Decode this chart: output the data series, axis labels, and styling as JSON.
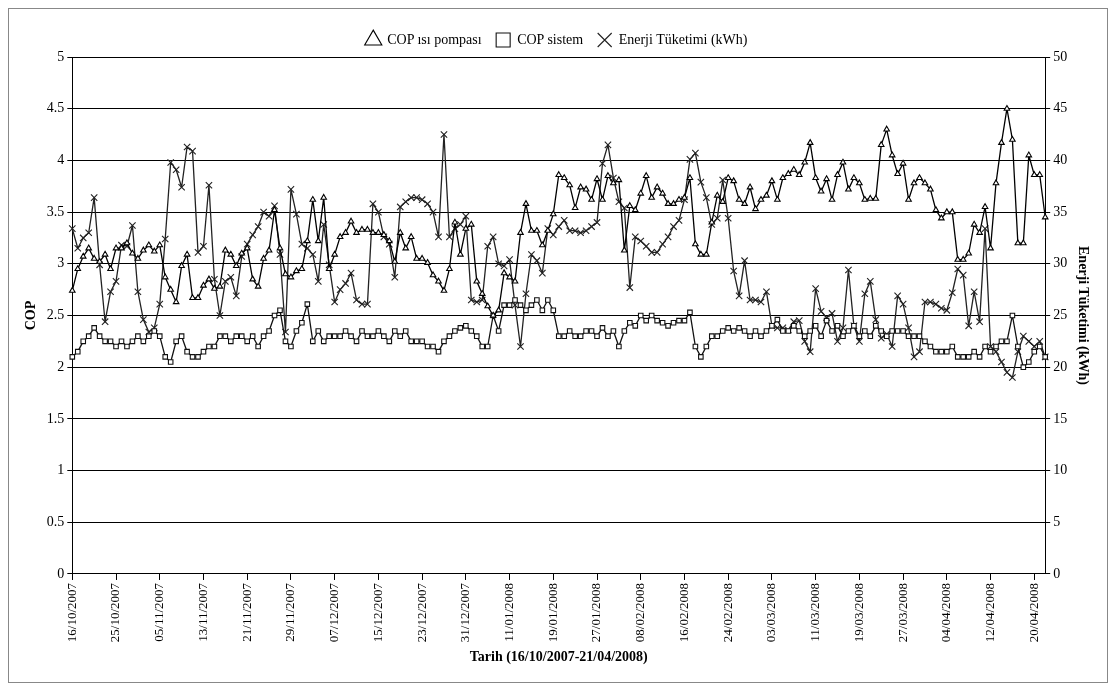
{
  "chart_data": {
    "type": "line",
    "xlabel": "Tarih (16/10/2007-21/04/2008)",
    "ylabel": "COP",
    "y2label": "Enerji Tüketimi (kWh)",
    "categories": [
      "16/10/2007",
      null,
      null,
      null,
      null,
      null,
      null,
      null,
      "25/10/2007",
      null,
      null,
      null,
      null,
      null,
      null,
      null,
      "05/11/2007",
      null,
      null,
      null,
      null,
      null,
      null,
      null,
      "13/11/2007",
      null,
      null,
      null,
      null,
      null,
      null,
      null,
      "21/11/2007",
      null,
      null,
      null,
      null,
      null,
      null,
      null,
      "29/11/2007",
      null,
      null,
      null,
      null,
      null,
      null,
      null,
      "07/12/2007",
      null,
      null,
      null,
      null,
      null,
      null,
      null,
      "15/12/2007",
      null,
      null,
      null,
      null,
      null,
      null,
      null,
      "23/12/2007",
      null,
      null,
      null,
      null,
      null,
      null,
      null,
      "31/12/2007",
      null,
      null,
      null,
      null,
      null,
      null,
      null,
      "11/01/2008",
      null,
      null,
      null,
      null,
      null,
      null,
      null,
      "19/01/2008",
      null,
      null,
      null,
      null,
      null,
      null,
      null,
      "27/01/2008",
      null,
      null,
      null,
      null,
      null,
      null,
      null,
      "08/02/2008",
      null,
      null,
      null,
      null,
      null,
      null,
      null,
      "16/02/2008",
      null,
      null,
      null,
      null,
      null,
      null,
      null,
      "24/02/2008",
      null,
      null,
      null,
      null,
      null,
      null,
      null,
      "03/03/2008",
      null,
      null,
      null,
      null,
      null,
      null,
      null,
      "11/03/2008",
      null,
      null,
      null,
      null,
      null,
      null,
      null,
      "19/03/2008",
      null,
      null,
      null,
      null,
      null,
      null,
      null,
      "27/03/2008",
      null,
      null,
      null,
      null,
      null,
      null,
      null,
      "04/04/2008",
      null,
      null,
      null,
      null,
      null,
      null,
      null,
      "12/04/2008",
      null,
      null,
      null,
      null,
      null,
      null,
      null,
      "20/04/2008",
      null,
      null
    ],
    "series": [
      {
        "name": "COP ısı pompası",
        "color": "#000000",
        "marker": "triangle",
        "values": [
          2.74,
          2.95,
          3.07,
          3.15,
          3.05,
          3.02,
          3.09,
          2.95,
          3.15,
          3.15,
          3.2,
          3.1,
          3.05,
          3.13,
          3.18,
          3.12,
          3.18,
          2.87,
          2.75,
          2.63,
          2.98,
          3.09,
          2.67,
          2.67,
          2.79,
          2.85,
          2.76,
          2.78,
          3.13,
          3.09,
          2.98,
          3.1,
          3.15,
          2.85,
          2.78,
          3.05,
          3.13,
          3.52,
          3.15,
          2.9,
          2.87,
          2.93,
          2.95,
          3.22,
          3.62,
          3.22,
          3.64,
          2.95,
          3.09,
          3.26,
          3.3,
          3.41,
          3.3,
          3.33,
          3.33,
          3.3,
          3.3,
          3.28,
          3.22,
          3.02,
          3.3,
          3.15,
          3.26,
          3.05,
          3.05,
          3.01,
          2.89,
          2.83,
          2.74,
          2.95,
          3.4,
          3.09,
          3.34,
          3.38,
          2.83,
          2.71,
          2.59,
          2.5,
          2.55,
          2.91,
          2.87,
          2.83,
          3.3,
          3.58,
          3.32,
          3.32,
          3.18,
          3.32,
          3.48,
          3.86,
          3.83,
          3.76,
          3.54,
          3.74,
          3.72,
          3.62,
          3.82,
          3.62,
          3.85,
          3.78,
          3.81,
          3.13,
          3.56,
          3.52,
          3.68,
          3.85,
          3.64,
          3.74,
          3.68,
          3.58,
          3.58,
          3.62,
          3.64,
          3.83,
          3.19,
          3.09,
          3.09,
          3.4,
          3.66,
          3.6,
          3.83,
          3.8,
          3.62,
          3.58,
          3.74,
          3.53,
          3.62,
          3.66,
          3.8,
          3.62,
          3.83,
          3.87,
          3.91,
          3.86,
          3.98,
          4.17,
          3.83,
          3.7,
          3.82,
          3.62,
          3.86,
          3.98,
          3.72,
          3.83,
          3.78,
          3.62,
          3.63,
          3.63,
          4.15,
          4.3,
          4.05,
          3.87,
          3.97,
          3.62,
          3.78,
          3.83,
          3.78,
          3.72,
          3.52,
          3.44,
          3.5,
          3.5,
          3.04,
          3.04,
          3.1,
          3.38,
          3.3,
          3.55,
          3.15,
          3.78,
          4.17,
          4.5,
          4.2,
          3.2,
          3.2,
          4.05,
          3.86,
          3.86,
          3.45
        ]
      },
      {
        "name": "COP sistem",
        "color": "#111111",
        "marker": "square",
        "values": [
          2.1,
          2.15,
          2.25,
          2.3,
          2.38,
          2.3,
          2.25,
          2.25,
          2.2,
          2.25,
          2.2,
          2.25,
          2.3,
          2.25,
          2.3,
          2.35,
          2.3,
          2.1,
          2.05,
          2.25,
          2.3,
          2.15,
          2.1,
          2.1,
          2.15,
          2.2,
          2.2,
          2.3,
          2.3,
          2.25,
          2.3,
          2.3,
          2.25,
          2.3,
          2.2,
          2.3,
          2.35,
          2.5,
          2.55,
          2.25,
          2.2,
          2.35,
          2.43,
          2.61,
          2.25,
          2.35,
          2.25,
          2.3,
          2.3,
          2.3,
          2.35,
          2.3,
          2.25,
          2.35,
          2.3,
          2.3,
          2.35,
          2.3,
          2.25,
          2.35,
          2.3,
          2.35,
          2.25,
          2.25,
          2.25,
          2.2,
          2.2,
          2.15,
          2.25,
          2.3,
          2.35,
          2.38,
          2.4,
          2.35,
          2.3,
          2.2,
          2.2,
          2.5,
          2.35,
          2.6,
          2.6,
          2.65,
          2.6,
          2.55,
          2.6,
          2.65,
          2.55,
          2.65,
          2.55,
          2.3,
          2.3,
          2.35,
          2.3,
          2.3,
          2.35,
          2.35,
          2.3,
          2.38,
          2.3,
          2.35,
          2.2,
          2.35,
          2.43,
          2.4,
          2.5,
          2.45,
          2.5,
          2.45,
          2.43,
          2.4,
          2.43,
          2.45,
          2.45,
          2.53,
          2.2,
          2.1,
          2.2,
          2.3,
          2.3,
          2.35,
          2.38,
          2.35,
          2.38,
          2.35,
          2.3,
          2.35,
          2.3,
          2.35,
          2.4,
          2.46,
          2.35,
          2.35,
          2.4,
          2.35,
          2.3,
          2.35,
          2.4,
          2.3,
          2.45,
          2.35,
          2.4,
          2.3,
          2.35,
          2.4,
          2.3,
          2.35,
          2.3,
          2.4,
          2.35,
          2.3,
          2.35,
          2.35,
          2.35,
          2.3,
          2.3,
          2.3,
          2.25,
          2.2,
          2.15,
          2.15,
          2.15,
          2.2,
          2.1,
          2.1,
          2.1,
          2.15,
          2.1,
          2.2,
          2.15,
          2.2,
          2.25,
          2.25,
          2.5,
          2.2,
          2.0,
          2.05,
          2.15,
          2.2,
          2.1
        ]
      },
      {
        "name": "Enerji Tüketimi (kWh)",
        "color": "#222222",
        "marker": "cross",
        "axis": "y2",
        "values": [
          33.4,
          31.5,
          32.5,
          33,
          36.4,
          29.9,
          24.4,
          27.3,
          28.3,
          31.8,
          31.7,
          33.7,
          27.3,
          24.6,
          23.4,
          23.8,
          26.1,
          32.4,
          39.8,
          39.1,
          37.4,
          41.3,
          40.9,
          31.1,
          31.7,
          37.6,
          28.5,
          25,
          28.3,
          28.7,
          26.9,
          30.7,
          31.9,
          32.8,
          33.6,
          35,
          34.6,
          35.6,
          30.9,
          23.4,
          37.2,
          34.8,
          31.9,
          31.5,
          30.9,
          28.3,
          33.8,
          29.9,
          26.3,
          27.5,
          28.1,
          29.1,
          26.5,
          26.1,
          26.1,
          35.8,
          35,
          32.6,
          31.9,
          28.7,
          35.5,
          36,
          36.4,
          36.4,
          36.2,
          35.8,
          35,
          32.6,
          42.5,
          32.6,
          33.4,
          33.8,
          34.6,
          26.5,
          26.3,
          26.5,
          31.7,
          32.6,
          30,
          29.8,
          30.4,
          26,
          22,
          27.1,
          30.9,
          30.3,
          29.1,
          33.4,
          32.8,
          33.6,
          34.2,
          33.2,
          33.2,
          33,
          33.2,
          33.6,
          34,
          39.7,
          41.5,
          38.3,
          36,
          35.4,
          27.7,
          32.6,
          32.2,
          31.7,
          31.1,
          31.1,
          31.9,
          32.6,
          33.6,
          34.2,
          36.2,
          40.1,
          40.7,
          37.9,
          36.4,
          33.8,
          34.4,
          38.1,
          34.4,
          29.3,
          26.9,
          30.3,
          26.5,
          26.5,
          26.3,
          27.3,
          24,
          23.8,
          23.8,
          23.6,
          24.4,
          24.5,
          22.5,
          21.5,
          27.6,
          25.4,
          24.8,
          25.2,
          22.5,
          23.8,
          29.4,
          24,
          22.5,
          27.1,
          28.3,
          24.6,
          22.8,
          23.2,
          22,
          26.9,
          26.1,
          23.8,
          21,
          21.5,
          26.3,
          26.3,
          26.1,
          25.7,
          25.5,
          27.2,
          29.5,
          28.9,
          24,
          27.3,
          24.4,
          33.4,
          22,
          21.5,
          20.5,
          19.5,
          19,
          21.5,
          23,
          22.5,
          22,
          22.5,
          21
        ]
      }
    ],
    "ylim": [
      0,
      5
    ],
    "yticks": [
      0,
      0.5,
      1,
      1.5,
      2,
      2.5,
      3,
      3.5,
      4,
      4.5,
      5
    ],
    "y2lim": [
      0,
      50
    ],
    "y2ticks": [
      0,
      5,
      10,
      15,
      20,
      25,
      30,
      35,
      40,
      45,
      50
    ],
    "grid": "y",
    "legend": "top",
    "line_style": "solid"
  }
}
